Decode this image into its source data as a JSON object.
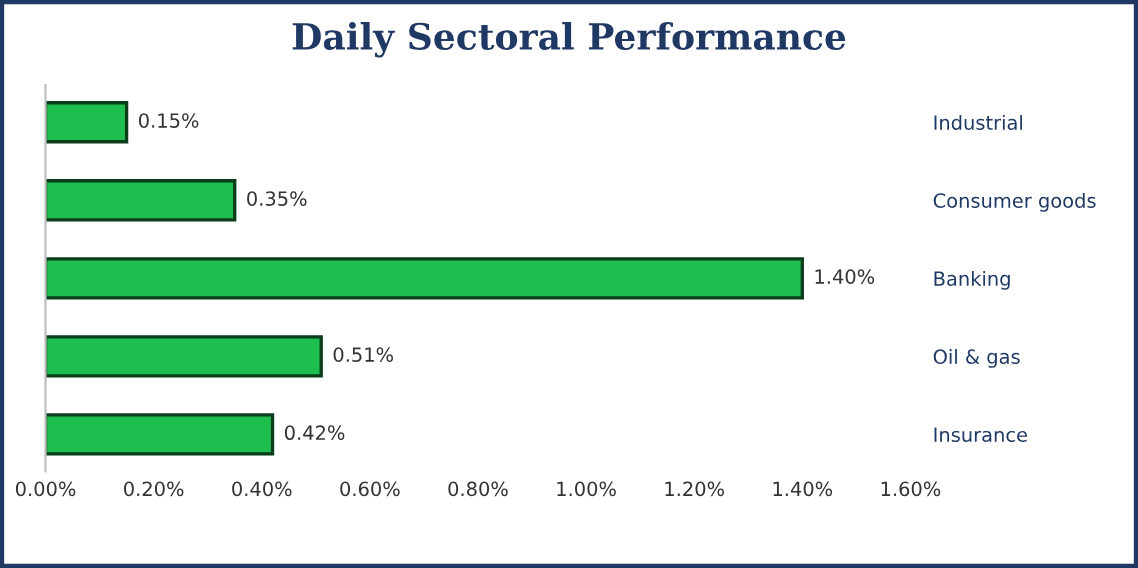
{
  "chart_data": {
    "type": "bar",
    "orientation": "horizontal",
    "title": "Daily Sectoral Performance",
    "categories": [
      "Industrial",
      "Consumer goods",
      "Banking",
      "Oil & gas",
      "Insurance"
    ],
    "values": [
      0.15,
      0.35,
      1.4,
      0.51,
      0.42
    ],
    "value_labels": [
      "0.15%",
      "0.35%",
      "1.40%",
      "0.51%",
      "0.42%"
    ],
    "color": "#1fbf4f",
    "xlim": [
      0,
      1.6
    ],
    "xticks": [
      {
        "value": 0,
        "label": "0.00%"
      },
      {
        "value": 0.2,
        "label": "0.20%"
      },
      {
        "value": 0.4,
        "label": "0.40%"
      },
      {
        "value": 0.6,
        "label": "0.60%"
      },
      {
        "value": 0.8,
        "label": "0.80%"
      },
      {
        "value": 1.0,
        "label": "1.00%"
      },
      {
        "value": 1.2,
        "label": "1.20%"
      },
      {
        "value": 1.4,
        "label": "1.40%"
      },
      {
        "value": 1.6,
        "label": "1.60%"
      }
    ],
    "grid": false,
    "legend": false
  }
}
